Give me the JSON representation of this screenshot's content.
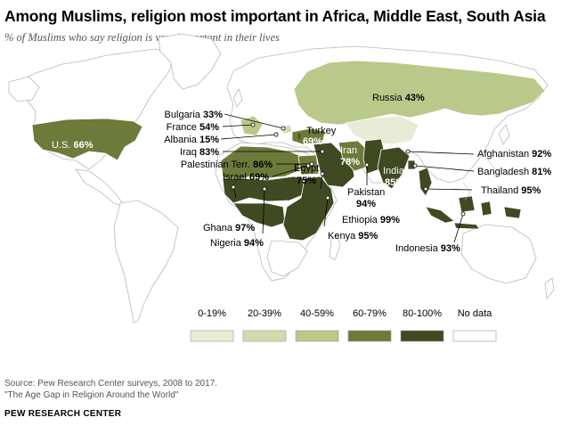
{
  "title": "Among Muslims, religion most important in Africa, Middle East, South Asia",
  "subtitle": "% of Muslims who say religion is very important in their lives",
  "legend": [
    {
      "label": "0-19%",
      "color": "#e8ecd6"
    },
    {
      "label": "20-39%",
      "color": "#d1dcae"
    },
    {
      "label": "40-59%",
      "color": "#b8c98a"
    },
    {
      "label": "60-79%",
      "color": "#6c7a3a"
    },
    {
      "label": "80-100%",
      "color": "#3f4a22"
    },
    {
      "label": "No data",
      "color": "#ffffff"
    }
  ],
  "countries": [
    {
      "name": "Russia",
      "value": "43%"
    },
    {
      "name": "Bulgaria",
      "value": "33%"
    },
    {
      "name": "France",
      "value": "54%"
    },
    {
      "name": "Albania",
      "value": "15%"
    },
    {
      "name": "Iraq",
      "value": "83%"
    },
    {
      "name": "Palestinian Terr.",
      "value": "86%"
    },
    {
      "name": "Israel",
      "value": "69%"
    },
    {
      "name": "Turkey",
      "value": "69%"
    },
    {
      "name": "Egypt",
      "value": "75%"
    },
    {
      "name": "Iran",
      "value": "78%"
    },
    {
      "name": "India",
      "value": "85%"
    },
    {
      "name": "Pakistan",
      "value": "94%"
    },
    {
      "name": "Afghanistan",
      "value": "92%"
    },
    {
      "name": "Bangladesh",
      "value": "81%"
    },
    {
      "name": "Thailand",
      "value": "95%"
    },
    {
      "name": "Ghana",
      "value": "97%"
    },
    {
      "name": "Nigeria",
      "value": "94%"
    },
    {
      "name": "Ethiopia",
      "value": "99%"
    },
    {
      "name": "Kenya",
      "value": "95%"
    },
    {
      "name": "Indonesia",
      "value": "93%"
    },
    {
      "name": "U.S.",
      "value": "66%"
    }
  ],
  "source_line1": "Source: Pew Research Center surveys, 2008 to 2017.",
  "source_line2": "\"The Age Gap in Religion Around the World\"",
  "org": "PEW RESEARCH CENTER"
}
